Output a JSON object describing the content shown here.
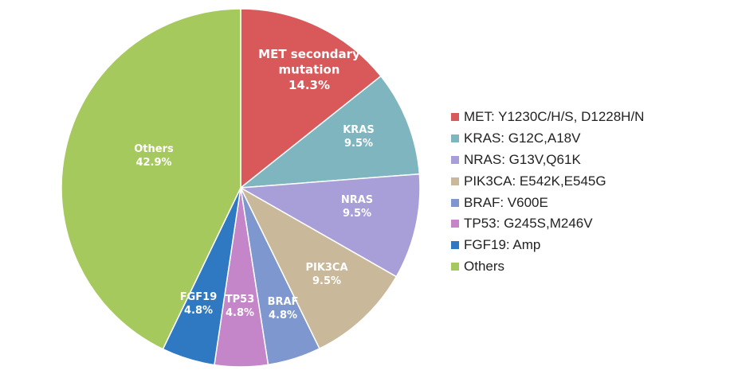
{
  "chart_data": {
    "type": "pie",
    "slices": [
      {
        "key": "met",
        "label_lines": [
          "MET secondary",
          "mutation"
        ],
        "pct_text": "14.3%",
        "value": 14.3,
        "color": "#d9595b",
        "legend": "MET:  Y1230C/H/S, D1228H/N"
      },
      {
        "key": "kras",
        "label_lines": [
          "KRAS"
        ],
        "pct_text": "9.5%",
        "value": 9.5,
        "color": "#7fb5bf",
        "legend": "KRAS: G12C,A18V"
      },
      {
        "key": "nras",
        "label_lines": [
          "NRAS"
        ],
        "pct_text": "9.5%",
        "value": 9.5,
        "color": "#a89fd8",
        "legend": "NRAS: G13V,Q61K"
      },
      {
        "key": "pik3ca",
        "label_lines": [
          "PIK3CA"
        ],
        "pct_text": "9.5%",
        "value": 9.5,
        "color": "#c9b99a",
        "legend": "PIK3CA: E542K,E545G"
      },
      {
        "key": "braf",
        "label_lines": [
          "BRAF"
        ],
        "pct_text": "4.8%",
        "value": 4.8,
        "color": "#7e97cf",
        "legend": "BRAF: V600E"
      },
      {
        "key": "tp53",
        "label_lines": [
          "TP53"
        ],
        "pct_text": "4.8%",
        "value": 4.8,
        "color": "#c586c9",
        "legend": "TP53: G245S,M246V"
      },
      {
        "key": "fgf19",
        "label_lines": [
          "FGF19"
        ],
        "pct_text": "4.8%",
        "value": 4.8,
        "color": "#2f78c2",
        "legend": "FGF19: Amp"
      },
      {
        "key": "others",
        "label_lines": [
          "Others"
        ],
        "pct_text": "42.9%",
        "value": 42.9,
        "color": "#a6c95e",
        "legend": "Others"
      }
    ],
    "legend_position": "right",
    "start_angle": "top, clockwise"
  }
}
